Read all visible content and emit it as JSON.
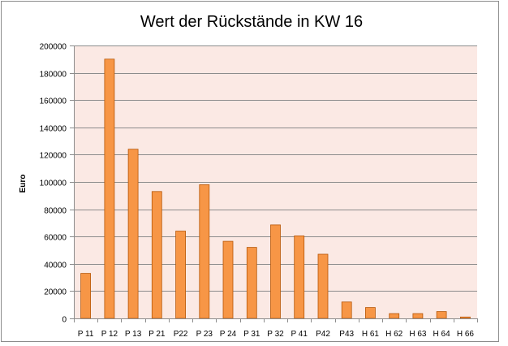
{
  "chart_data": {
    "type": "bar",
    "title": "Wert der Rückstände in KW 16",
    "xlabel": "",
    "ylabel": "Euro",
    "ylim": [
      0,
      200000
    ],
    "yticks": [
      0,
      20000,
      40000,
      60000,
      80000,
      100000,
      120000,
      140000,
      160000,
      180000,
      200000
    ],
    "ytick_labels": [
      "0",
      "20000",
      "40000",
      "60000",
      "80000",
      "100000",
      "120000",
      "140000",
      "160000",
      "180000",
      "200000"
    ],
    "categories": [
      "P 11",
      "P 12",
      "P 13",
      "P 21",
      "P22",
      "P 23",
      "P 24",
      "P 31",
      "P 32",
      "P 41",
      "P42",
      "P43",
      "H 61",
      "H 62",
      "H 63",
      "H 64",
      "H 66"
    ],
    "values": [
      33000,
      190000,
      124000,
      93000,
      64000,
      98000,
      56500,
      52000,
      68500,
      60500,
      47000,
      12000,
      8000,
      3500,
      3500,
      5000,
      1000
    ],
    "grid": true,
    "legend": "none",
    "colors": {
      "bar_fill": "#f79646",
      "bar_stroke": "#b65708",
      "plot_background": "#fbe9e4",
      "gridline": "#8c8c8c",
      "axis": "#8c8c8c"
    }
  }
}
